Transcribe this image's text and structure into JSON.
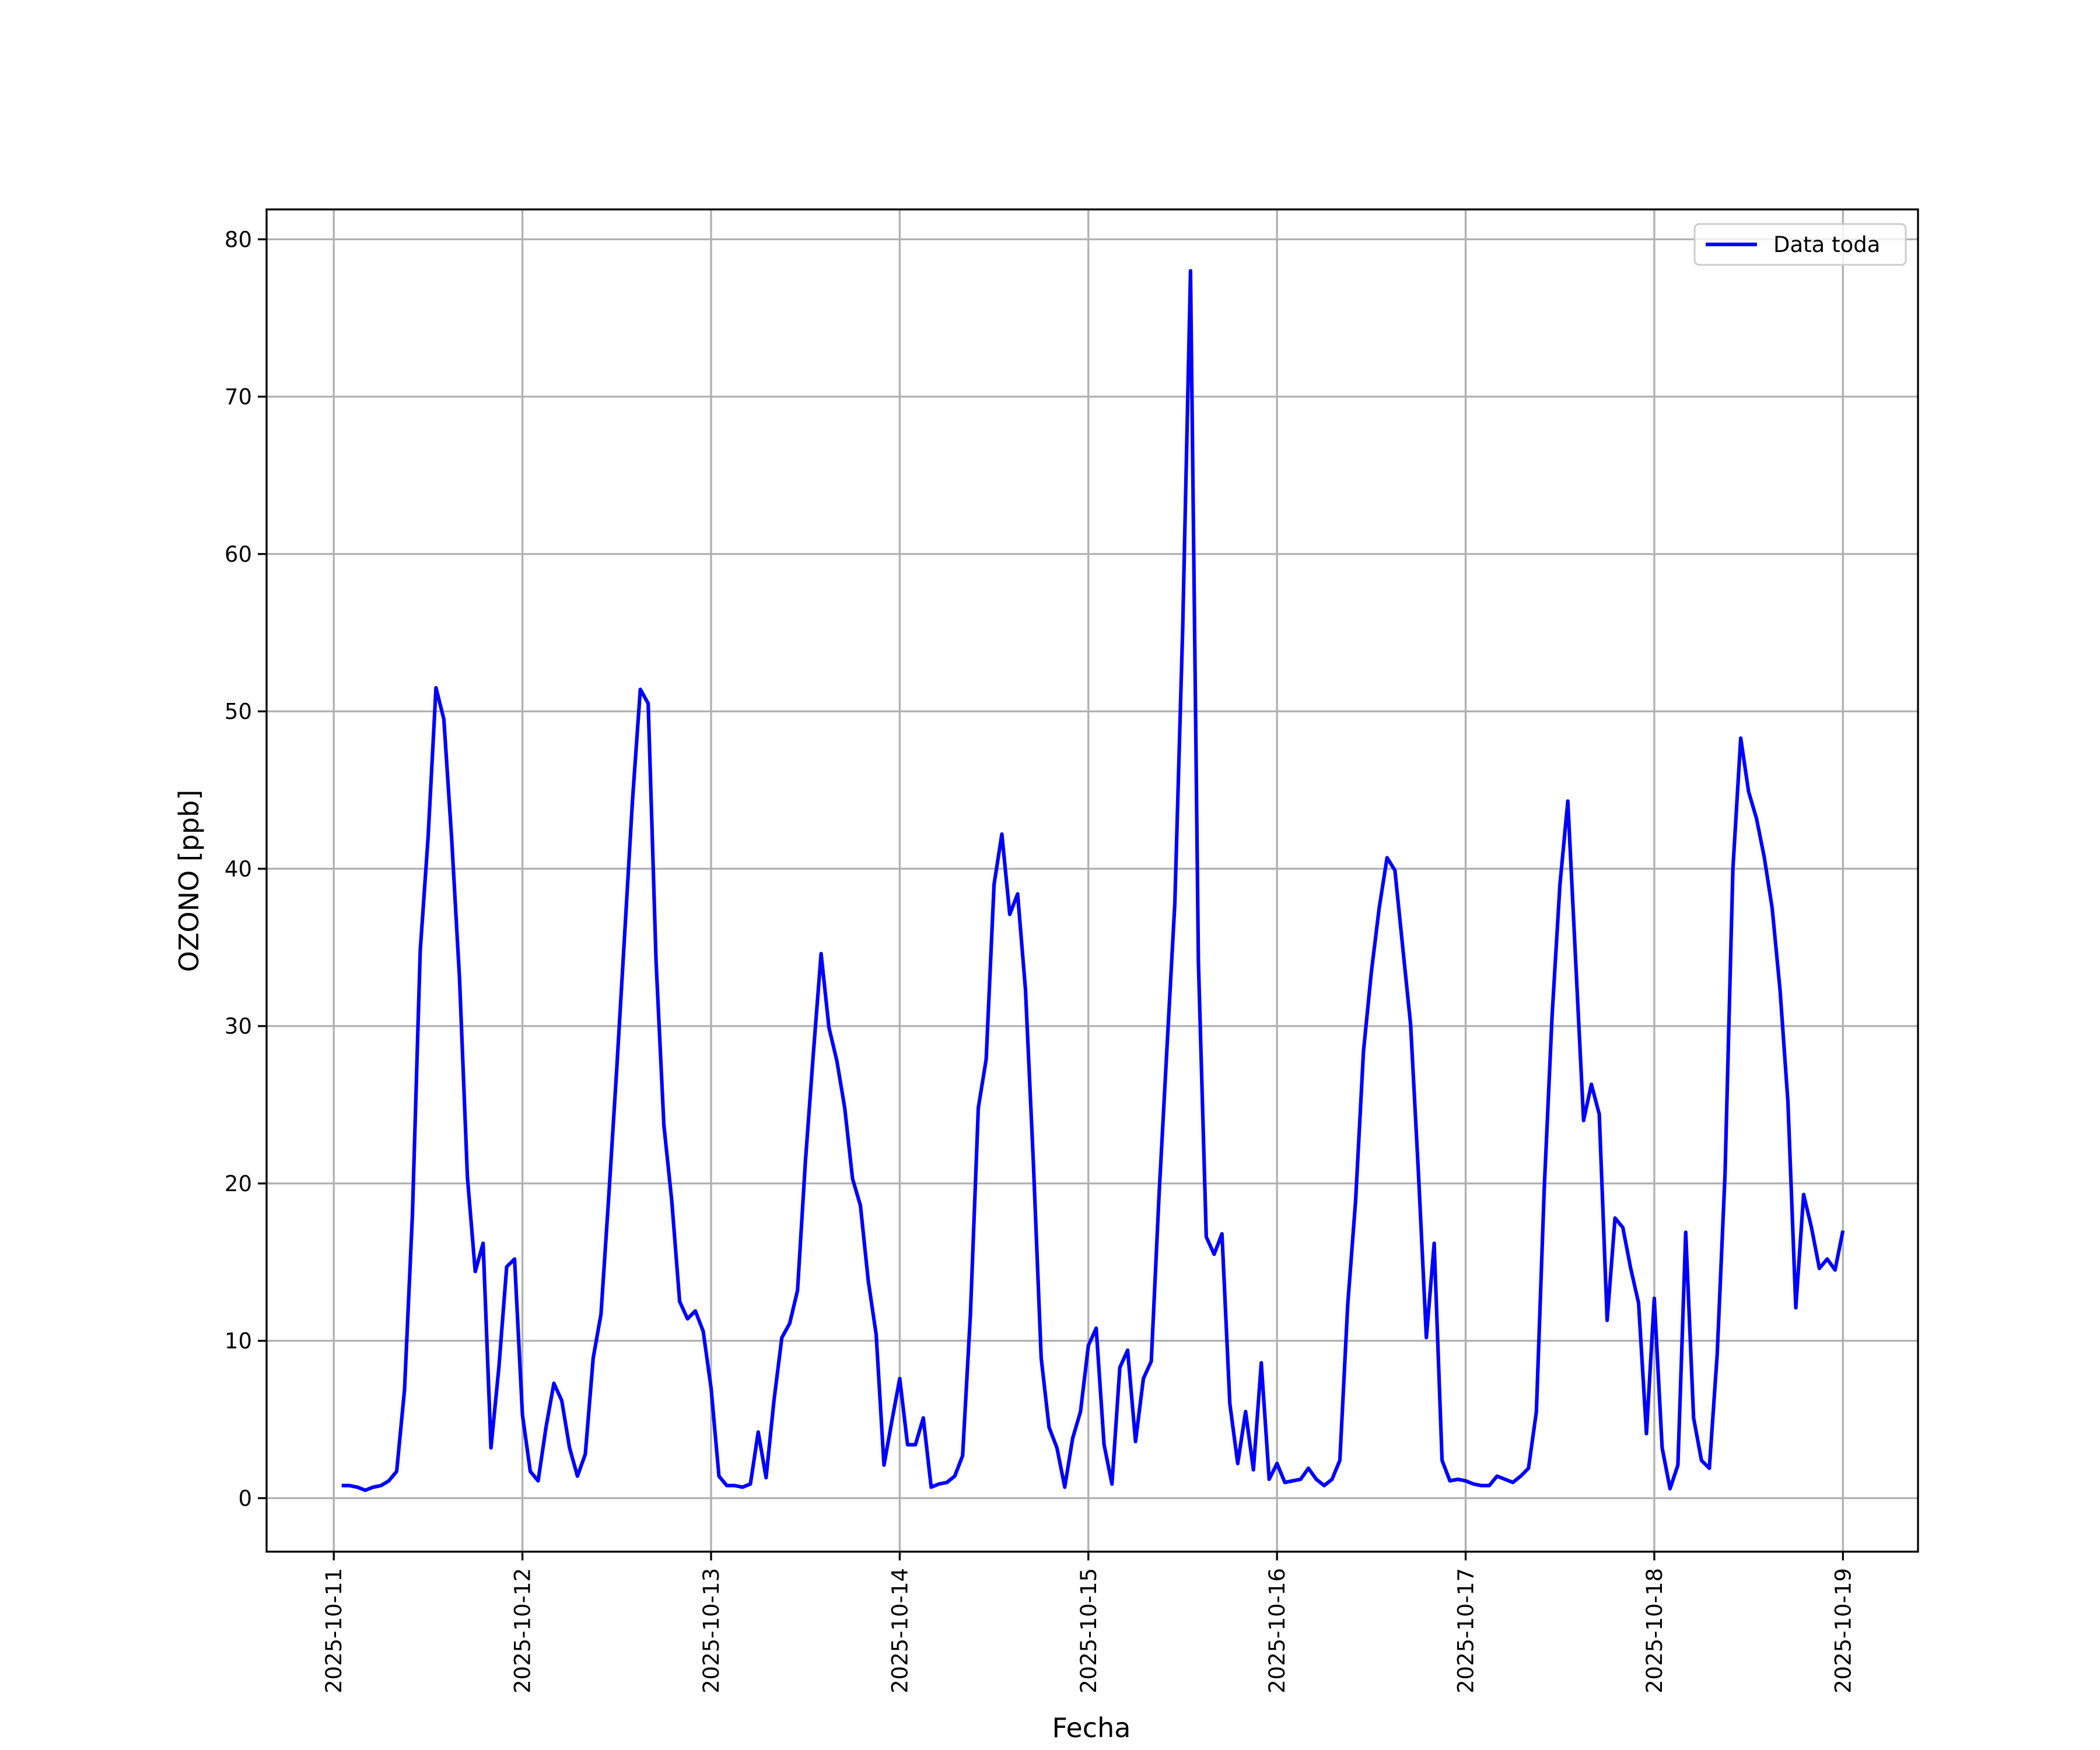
{
  "chart_data": {
    "type": "line",
    "xlabel": "Fecha",
    "ylabel": "OZONO [ppb]",
    "x": [
      "2025-10-11 01:00",
      "2025-10-11 02:00",
      "2025-10-11 03:00",
      "2025-10-11 04:00",
      "2025-10-11 05:00",
      "2025-10-11 06:00",
      "2025-10-11 07:00",
      "2025-10-11 08:00",
      "2025-10-11 09:00",
      "2025-10-11 10:00",
      "2025-10-11 11:00",
      "2025-10-11 12:00",
      "2025-10-11 13:00",
      "2025-10-11 14:00",
      "2025-10-11 15:00",
      "2025-10-11 16:00",
      "2025-10-11 17:00",
      "2025-10-11 18:00",
      "2025-10-11 19:00",
      "2025-10-11 20:00",
      "2025-10-11 21:00",
      "2025-10-11 22:00",
      "2025-10-11 23:00",
      "2025-10-12 00:00",
      "2025-10-12 01:00",
      "2025-10-12 02:00",
      "2025-10-12 03:00",
      "2025-10-12 04:00",
      "2025-10-12 05:00",
      "2025-10-12 06:00",
      "2025-10-12 07:00",
      "2025-10-12 08:00",
      "2025-10-12 09:00",
      "2025-10-12 10:00",
      "2025-10-12 11:00",
      "2025-10-12 12:00",
      "2025-10-12 13:00",
      "2025-10-12 14:00",
      "2025-10-12 15:00",
      "2025-10-12 16:00",
      "2025-10-12 17:00",
      "2025-10-12 18:00",
      "2025-10-12 19:00",
      "2025-10-12 20:00",
      "2025-10-12 21:00",
      "2025-10-12 22:00",
      "2025-10-12 23:00",
      "2025-10-13 00:00",
      "2025-10-13 01:00",
      "2025-10-13 02:00",
      "2025-10-13 03:00",
      "2025-10-13 04:00",
      "2025-10-13 05:00",
      "2025-10-13 06:00",
      "2025-10-13 07:00",
      "2025-10-13 08:00",
      "2025-10-13 09:00",
      "2025-10-13 10:00",
      "2025-10-13 11:00",
      "2025-10-13 12:00",
      "2025-10-13 13:00",
      "2025-10-13 14:00",
      "2025-10-13 15:00",
      "2025-10-13 16:00",
      "2025-10-13 17:00",
      "2025-10-13 18:00",
      "2025-10-13 19:00",
      "2025-10-13 20:00",
      "2025-10-13 21:00",
      "2025-10-13 22:00",
      "2025-10-13 23:00",
      "2025-10-14 00:00",
      "2025-10-14 01:00",
      "2025-10-14 02:00",
      "2025-10-14 03:00",
      "2025-10-14 04:00",
      "2025-10-14 05:00",
      "2025-10-14 06:00",
      "2025-10-14 07:00",
      "2025-10-14 08:00",
      "2025-10-14 09:00",
      "2025-10-14 10:00",
      "2025-10-14 11:00",
      "2025-10-14 12:00",
      "2025-10-14 13:00",
      "2025-10-14 14:00",
      "2025-10-14 15:00",
      "2025-10-14 16:00",
      "2025-10-14 17:00",
      "2025-10-14 18:00",
      "2025-10-14 19:00",
      "2025-10-14 20:00",
      "2025-10-14 21:00",
      "2025-10-14 22:00",
      "2025-10-14 23:00",
      "2025-10-15 00:00",
      "2025-10-15 01:00",
      "2025-10-15 02:00",
      "2025-10-15 03:00",
      "2025-10-15 04:00",
      "2025-10-15 05:00",
      "2025-10-15 06:00",
      "2025-10-15 07:00",
      "2025-10-15 08:00",
      "2025-10-15 09:00",
      "2025-10-15 10:00",
      "2025-10-15 11:00",
      "2025-10-15 12:00",
      "2025-10-15 13:00",
      "2025-10-15 14:00",
      "2025-10-15 15:00",
      "2025-10-15 16:00",
      "2025-10-15 17:00",
      "2025-10-15 18:00",
      "2025-10-15 19:00",
      "2025-10-15 20:00",
      "2025-10-15 21:00",
      "2025-10-15 22:00",
      "2025-10-15 23:00",
      "2025-10-16 00:00",
      "2025-10-16 01:00",
      "2025-10-16 02:00",
      "2025-10-16 03:00",
      "2025-10-16 04:00",
      "2025-10-16 05:00",
      "2025-10-16 06:00",
      "2025-10-16 07:00",
      "2025-10-16 08:00",
      "2025-10-16 09:00",
      "2025-10-16 10:00",
      "2025-10-16 11:00",
      "2025-10-16 12:00",
      "2025-10-16 13:00",
      "2025-10-16 14:00",
      "2025-10-16 15:00",
      "2025-10-16 16:00",
      "2025-10-16 17:00",
      "2025-10-16 18:00",
      "2025-10-16 19:00",
      "2025-10-16 20:00",
      "2025-10-16 21:00",
      "2025-10-16 22:00",
      "2025-10-16 23:00",
      "2025-10-17 00:00",
      "2025-10-17 01:00",
      "2025-10-17 02:00",
      "2025-10-17 03:00",
      "2025-10-17 04:00",
      "2025-10-17 05:00",
      "2025-10-17 06:00",
      "2025-10-17 07:00",
      "2025-10-17 08:00",
      "2025-10-17 09:00",
      "2025-10-17 10:00",
      "2025-10-17 11:00",
      "2025-10-17 12:00",
      "2025-10-17 13:00",
      "2025-10-17 14:00",
      "2025-10-17 15:00",
      "2025-10-17 16:00",
      "2025-10-17 17:00",
      "2025-10-17 18:00",
      "2025-10-17 19:00",
      "2025-10-17 20:00",
      "2025-10-17 21:00",
      "2025-10-17 22:00",
      "2025-10-17 23:00",
      "2025-10-18 00:00",
      "2025-10-18 01:00",
      "2025-10-18 02:00",
      "2025-10-18 03:00",
      "2025-10-18 04:00",
      "2025-10-18 05:00",
      "2025-10-18 06:00",
      "2025-10-18 07:00",
      "2025-10-18 08:00",
      "2025-10-18 09:00",
      "2025-10-18 10:00",
      "2025-10-18 11:00",
      "2025-10-18 12:00",
      "2025-10-18 13:00",
      "2025-10-18 14:00",
      "2025-10-18 15:00",
      "2025-10-18 16:00",
      "2025-10-18 17:00",
      "2025-10-18 18:00",
      "2025-10-18 19:00",
      "2025-10-18 20:00",
      "2025-10-18 21:00",
      "2025-10-18 22:00",
      "2025-10-18 23:00",
      "2025-10-19 00:00"
    ],
    "series": [
      {
        "name": "Data toda",
        "color": "#0000ff",
        "values": [
          0.8,
          0.8,
          0.7,
          0.5,
          0.7,
          0.8,
          1.1,
          1.7,
          6.9,
          18,
          34.8,
          42,
          51.5,
          49.5,
          41.9,
          33,
          20.4,
          14.4,
          16.2,
          3.2,
          8.3,
          14.7,
          15.2,
          5.3,
          1.7,
          1.1,
          4.5,
          7.3,
          6.2,
          3.2,
          1.4,
          2.8,
          8.9,
          11.7,
          19.3,
          27.3,
          35.8,
          44.3,
          51.4,
          50.5,
          34.1,
          23.7,
          18.9,
          12.5,
          11.4,
          11.9,
          10.6,
          7.0,
          1.4,
          0.8,
          0.8,
          0.7,
          0.9,
          4.2,
          1.3,
          6.2,
          10.2,
          11.1,
          13.2,
          21.4,
          28.2,
          34.6,
          29.9,
          27.8,
          24.8,
          20.3,
          18.6,
          13.8,
          10.4,
          2.1,
          4.9,
          7.6,
          3.4,
          3.4,
          5.1,
          0.7,
          0.9,
          1.0,
          1.4,
          2.7,
          11.7,
          24.8,
          27.9,
          39,
          42.2,
          37.1,
          38.4,
          32.3,
          21.4,
          8.9,
          4.5,
          3.2,
          0.7,
          3.8,
          5.5,
          9.7,
          10.8,
          3.4,
          0.9,
          8.3,
          9.4,
          3.6,
          7.6,
          8.7,
          19.3,
          28.6,
          37.8,
          55.3,
          78,
          34.1,
          16.6,
          15.5,
          16.8,
          6.0,
          2.2,
          5.5,
          1.8,
          8.6,
          1.2,
          2.2,
          1.0,
          1.1,
          1.2,
          1.9,
          1.2,
          0.8,
          1.2,
          2.4,
          12.3,
          18.9,
          28.4,
          33.4,
          37.5,
          40.7,
          39.9,
          35,
          30.1,
          20.6,
          10.2,
          16.2,
          2.4,
          1.1,
          1.2,
          1.1,
          0.9,
          0.8,
          0.8,
          1.4,
          1.2,
          1.0,
          1.4,
          1.9,
          5.5,
          19.7,
          30.7,
          39,
          44.3,
          34.1,
          24,
          26.3,
          24.4,
          11.3,
          17.8,
          17.2,
          14.6,
          12.4,
          4.1,
          12.7,
          3.2,
          0.6,
          2.1,
          16.9,
          5.1,
          2.4,
          1.9,
          9.1,
          20.6,
          40,
          48.3,
          44.9,
          43.2,
          40.7,
          37.5,
          32.3,
          25.2,
          12.1,
          19.3,
          17.2,
          14.6,
          15.2,
          14.5,
          17
        ]
      }
    ],
    "xlim": [
      "2025-10-10 15:27",
      "2025-10-19 09:33"
    ],
    "xticks": [
      "2025-10-11",
      "2025-10-12",
      "2025-10-13",
      "2025-10-14",
      "2025-10-15",
      "2025-10-16",
      "2025-10-17",
      "2025-10-18",
      "2025-10-19"
    ],
    "ylim": [
      -3.4,
      81.9
    ],
    "yticks": [
      0,
      10,
      20,
      30,
      40,
      50,
      60,
      70,
      80
    ],
    "grid": true,
    "legend": "upper right"
  }
}
